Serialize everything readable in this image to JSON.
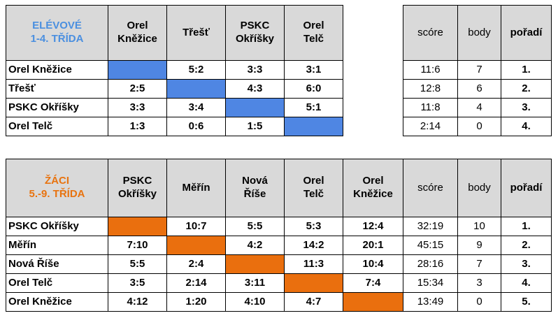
{
  "table1": {
    "title_line1": "ELÉVOVÉ",
    "title_line2": "1-4. TŘÍDA",
    "columns": [
      {
        "line1": "Orel",
        "line2": "Kněžice"
      },
      {
        "line1": "Třešť",
        "line2": ""
      },
      {
        "line1": "PSKC",
        "line2": "Okříšky"
      },
      {
        "line1": "Orel",
        "line2": "Telč"
      }
    ],
    "summary_headers": {
      "score": "scóre",
      "points": "body",
      "rank": "pořadí"
    },
    "rows": [
      {
        "team": "Orel Kněžice",
        "results": [
          "",
          "5:2",
          "3:3",
          "3:1"
        ],
        "score": "11:6",
        "points": "7",
        "rank": "1."
      },
      {
        "team": "Třešť",
        "results": [
          "2:5",
          "",
          "4:3",
          "6:0"
        ],
        "score": "12:8",
        "points": "6",
        "rank": "2."
      },
      {
        "team": "PSKC Okříšky",
        "results": [
          "3:3",
          "3:4",
          "",
          "5:1"
        ],
        "score": "11:8",
        "points": "4",
        "rank": "3."
      },
      {
        "team": "Orel Telč",
        "results": [
          "1:3",
          "0:6",
          "1:5",
          ""
        ],
        "score": "2:14",
        "points": "0",
        "rank": "4."
      }
    ],
    "accent": "#4f86e3"
  },
  "table2": {
    "title_line1": "ŽÁCI",
    "title_line2": "5.-9. TŘÍDA",
    "columns": [
      {
        "line1": "PSKC",
        "line2": "Okříšky"
      },
      {
        "line1": "Měřín",
        "line2": ""
      },
      {
        "line1": "Nová",
        "line2": "Říše"
      },
      {
        "line1": "Orel",
        "line2": "Telč"
      },
      {
        "line1": "Orel",
        "line2": "Kněžice"
      }
    ],
    "summary_headers": {
      "score": "scóre",
      "points": "body",
      "rank": "pořadí"
    },
    "rows": [
      {
        "team": "PSKC Okříšky",
        "results": [
          "",
          "10:7",
          "5:5",
          "5:3",
          "12:4"
        ],
        "score": "32:19",
        "points": "10",
        "rank": "1."
      },
      {
        "team": "Měřín",
        "results": [
          "7:10",
          "",
          "4:2",
          "14:2",
          "20:1"
        ],
        "score": "45:15",
        "points": "9",
        "rank": "2."
      },
      {
        "team": "Nová Říše",
        "results": [
          "5:5",
          "2:4",
          "",
          "11:3",
          "10:4"
        ],
        "score": "28:16",
        "points": "7",
        "rank": "3."
      },
      {
        "team": "Orel Telč",
        "results": [
          "3:5",
          "2:14",
          "3:11",
          "",
          "7:4"
        ],
        "score": "15:34",
        "points": "3",
        "rank": "4."
      },
      {
        "team": "Orel Kněžice",
        "results": [
          "4:12",
          "1:20",
          "4:10",
          "4:7",
          ""
        ],
        "score": "13:49",
        "points": "0",
        "rank": "5."
      }
    ],
    "accent": "#ea6f0e"
  }
}
